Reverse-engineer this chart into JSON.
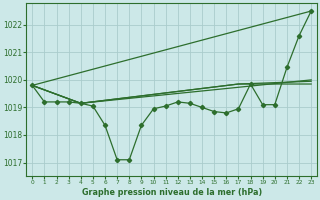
{
  "background_color": "#cce8e8",
  "grid_color": "#aacccc",
  "line_color": "#2d6e2d",
  "title": "Graphe pression niveau de la mer (hPa)",
  "xlim": [
    -0.5,
    23.5
  ],
  "ylim": [
    1016.5,
    1022.8
  ],
  "yticks": [
    1017,
    1018,
    1019,
    1020,
    1021,
    1022
  ],
  "xticks": [
    0,
    1,
    2,
    3,
    4,
    5,
    6,
    7,
    8,
    9,
    10,
    11,
    12,
    13,
    14,
    15,
    16,
    17,
    18,
    19,
    20,
    21,
    22,
    23
  ],
  "line_main": {
    "x": [
      0,
      1,
      2,
      3,
      4,
      5,
      6,
      7,
      8,
      9,
      10,
      11,
      12,
      13,
      14,
      15,
      16,
      17,
      18,
      19,
      20,
      21,
      22,
      23
    ],
    "y": [
      1019.8,
      1019.2,
      1019.2,
      1019.2,
      1019.15,
      1019.05,
      1018.35,
      1017.1,
      1017.1,
      1018.35,
      1018.95,
      1019.05,
      1019.2,
      1019.15,
      1019.0,
      1018.85,
      1018.8,
      1018.95,
      1019.85,
      1019.1,
      1019.1,
      1020.45,
      1021.6,
      1022.5
    ]
  },
  "line_top": {
    "x": [
      0,
      23
    ],
    "y": [
      1019.8,
      1022.5
    ]
  },
  "line_mid1": {
    "x": [
      0,
      4,
      23
    ],
    "y": [
      1019.8,
      1019.15,
      1020.0
    ]
  },
  "line_mid2": {
    "x": [
      0,
      4,
      17,
      23
    ],
    "y": [
      1019.8,
      1019.15,
      1019.85,
      1019.85
    ]
  },
  "line_mid3": {
    "x": [
      0,
      4,
      17,
      23
    ],
    "y": [
      1019.8,
      1019.15,
      1019.85,
      1019.95
    ]
  }
}
